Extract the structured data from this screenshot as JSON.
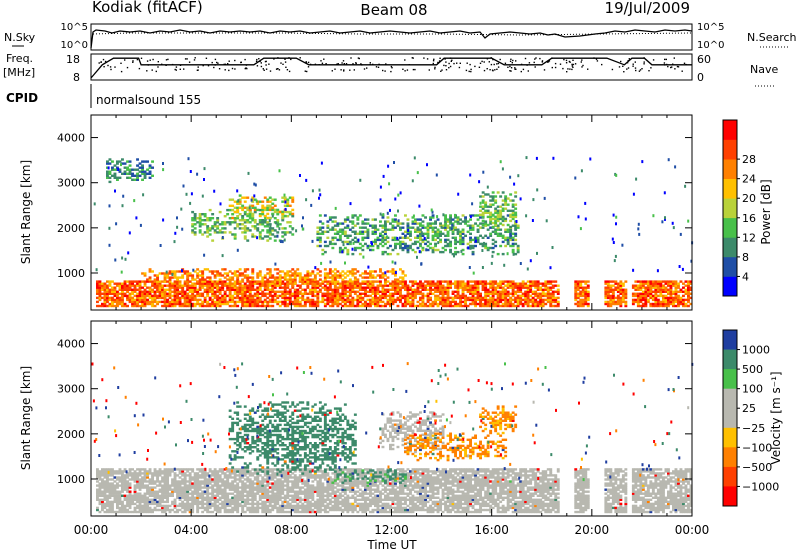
{
  "header": {
    "station": "Kodiak (fitACF)",
    "beam": "Beam 08",
    "date": "19/Jul/2009",
    "cpid_label": "CPID",
    "cpid_value": "normalsound 155"
  },
  "noise_panel": {
    "left_label": "N.Sky",
    "right_label": "N.Search",
    "ticks_left": [
      "10^5",
      "10^0"
    ],
    "ticks_right": [
      "10^5",
      "10^0"
    ]
  },
  "freq_panel": {
    "left_label_1": "Freq.",
    "left_label_2": "[MHz]",
    "right_label": "Nave",
    "ticks_left": [
      "18",
      "8"
    ],
    "ticks_right": [
      "60",
      "0"
    ],
    "step_x": [
      0,
      0.45,
      0.9,
      1.9,
      2.0,
      5.5,
      6.0,
      6.5,
      6.9,
      8.2,
      8.7,
      10.5,
      11.0,
      13.8,
      14.1,
      16.0,
      16.5,
      18.0,
      18.4,
      19.9,
      20.6,
      21.3,
      21.6,
      22.1,
      22.4,
      24
    ],
    "step_y": [
      8,
      14,
      17,
      17,
      14,
      14,
      14,
      14,
      17,
      17,
      14,
      14,
      14,
      14,
      17,
      17,
      14,
      14,
      17,
      17,
      17,
      14,
      17,
      17,
      14,
      14
    ],
    "colors": {
      "freq_line": "#000000"
    }
  },
  "chart_data": [
    {
      "type": "heatmap",
      "title": "",
      "xlabel": "",
      "ylabel": "Slant Range [km]",
      "xlim": [
        0,
        24
      ],
      "ylim": [
        180,
        4500
      ],
      "yticks": [
        "1000",
        "2000",
        "3000",
        "4000"
      ],
      "colorbar": {
        "label": "Power [dB]",
        "ticks": [
          "4",
          "8",
          "12",
          "16",
          "20",
          "24",
          "28"
        ],
        "colors": [
          "#0000ff",
          "#1f4ea6",
          "#3c8a6a",
          "#48c04a",
          "#b9d23a",
          "#ffc000",
          "#ff8000",
          "#ff4000",
          "#ff0000"
        ]
      },
      "regions": [
        {
          "x": [
            0.2,
            24.0
          ],
          "y": [
            250,
            800
          ],
          "value": 28
        },
        {
          "x": [
            2.0,
            12.5
          ],
          "y": [
            700,
            1100
          ],
          "value": 26
        },
        {
          "x": [
            4.0,
            8.0
          ],
          "y": [
            1700,
            2400
          ],
          "value": 14
        },
        {
          "x": [
            5.5,
            8.0
          ],
          "y": [
            2200,
            2700
          ],
          "value": 20
        },
        {
          "x": [
            9.0,
            17.0
          ],
          "y": [
            1400,
            2300
          ],
          "value": 12
        },
        {
          "x": [
            15.5,
            17.0
          ],
          "y": [
            2000,
            2800
          ],
          "value": 14
        },
        {
          "x": [
            0.5,
            2.5
          ],
          "y": [
            3000,
            3500
          ],
          "value": 10
        }
      ],
      "gaps": [
        [
          18.6,
          19.3
        ],
        [
          19.9,
          20.5
        ],
        [
          21.4,
          21.6
        ]
      ]
    },
    {
      "type": "heatmap",
      "title": "",
      "xlabel": "Time UT",
      "ylabel": "Slant Range [km]",
      "xlim": [
        0,
        24
      ],
      "ylim": [
        180,
        4500
      ],
      "xticks": [
        "00:00",
        "04:00",
        "08:00",
        "12:00",
        "16:00",
        "20:00",
        "00:00"
      ],
      "yticks": [
        "1000",
        "2000",
        "3000",
        "4000"
      ],
      "colorbar": {
        "label": "Velocity [m s⁻¹]",
        "ticks": [
          "1000",
          "500",
          "100",
          "25",
          "−25",
          "−100",
          "−500",
          "−1000"
        ],
        "colors": [
          "#1f3ea0",
          "#3c8a6a",
          "#48c04a",
          "#b8b8b0",
          "#b8b8b0",
          "#ffc000",
          "#ff8000",
          "#ff4000",
          "#ff0000"
        ]
      },
      "regions": [
        {
          "x": [
            0.2,
            24.0
          ],
          "y": [
            250,
            1200
          ],
          "value": 0
        },
        {
          "x": [
            5.5,
            10.5
          ],
          "y": [
            1100,
            2700
          ],
          "value": 200
        },
        {
          "x": [
            9.5,
            12.5
          ],
          "y": [
            900,
            1200
          ],
          "value": 150
        },
        {
          "x": [
            11.5,
            14.0
          ],
          "y": [
            1600,
            2500
          ],
          "value": 0
        },
        {
          "x": [
            12.5,
            16.5
          ],
          "y": [
            1400,
            2000
          ],
          "value": -150
        },
        {
          "x": [
            15.5,
            17.0
          ],
          "y": [
            2000,
            2600
          ],
          "value": -150
        }
      ],
      "gaps": [
        [
          18.6,
          19.3
        ],
        [
          19.9,
          20.5
        ],
        [
          21.4,
          21.6
        ]
      ]
    }
  ],
  "colors": {
    "axis": "#000000",
    "background": "#ffffff",
    "ground_scatter": "#b8b8b0"
  }
}
